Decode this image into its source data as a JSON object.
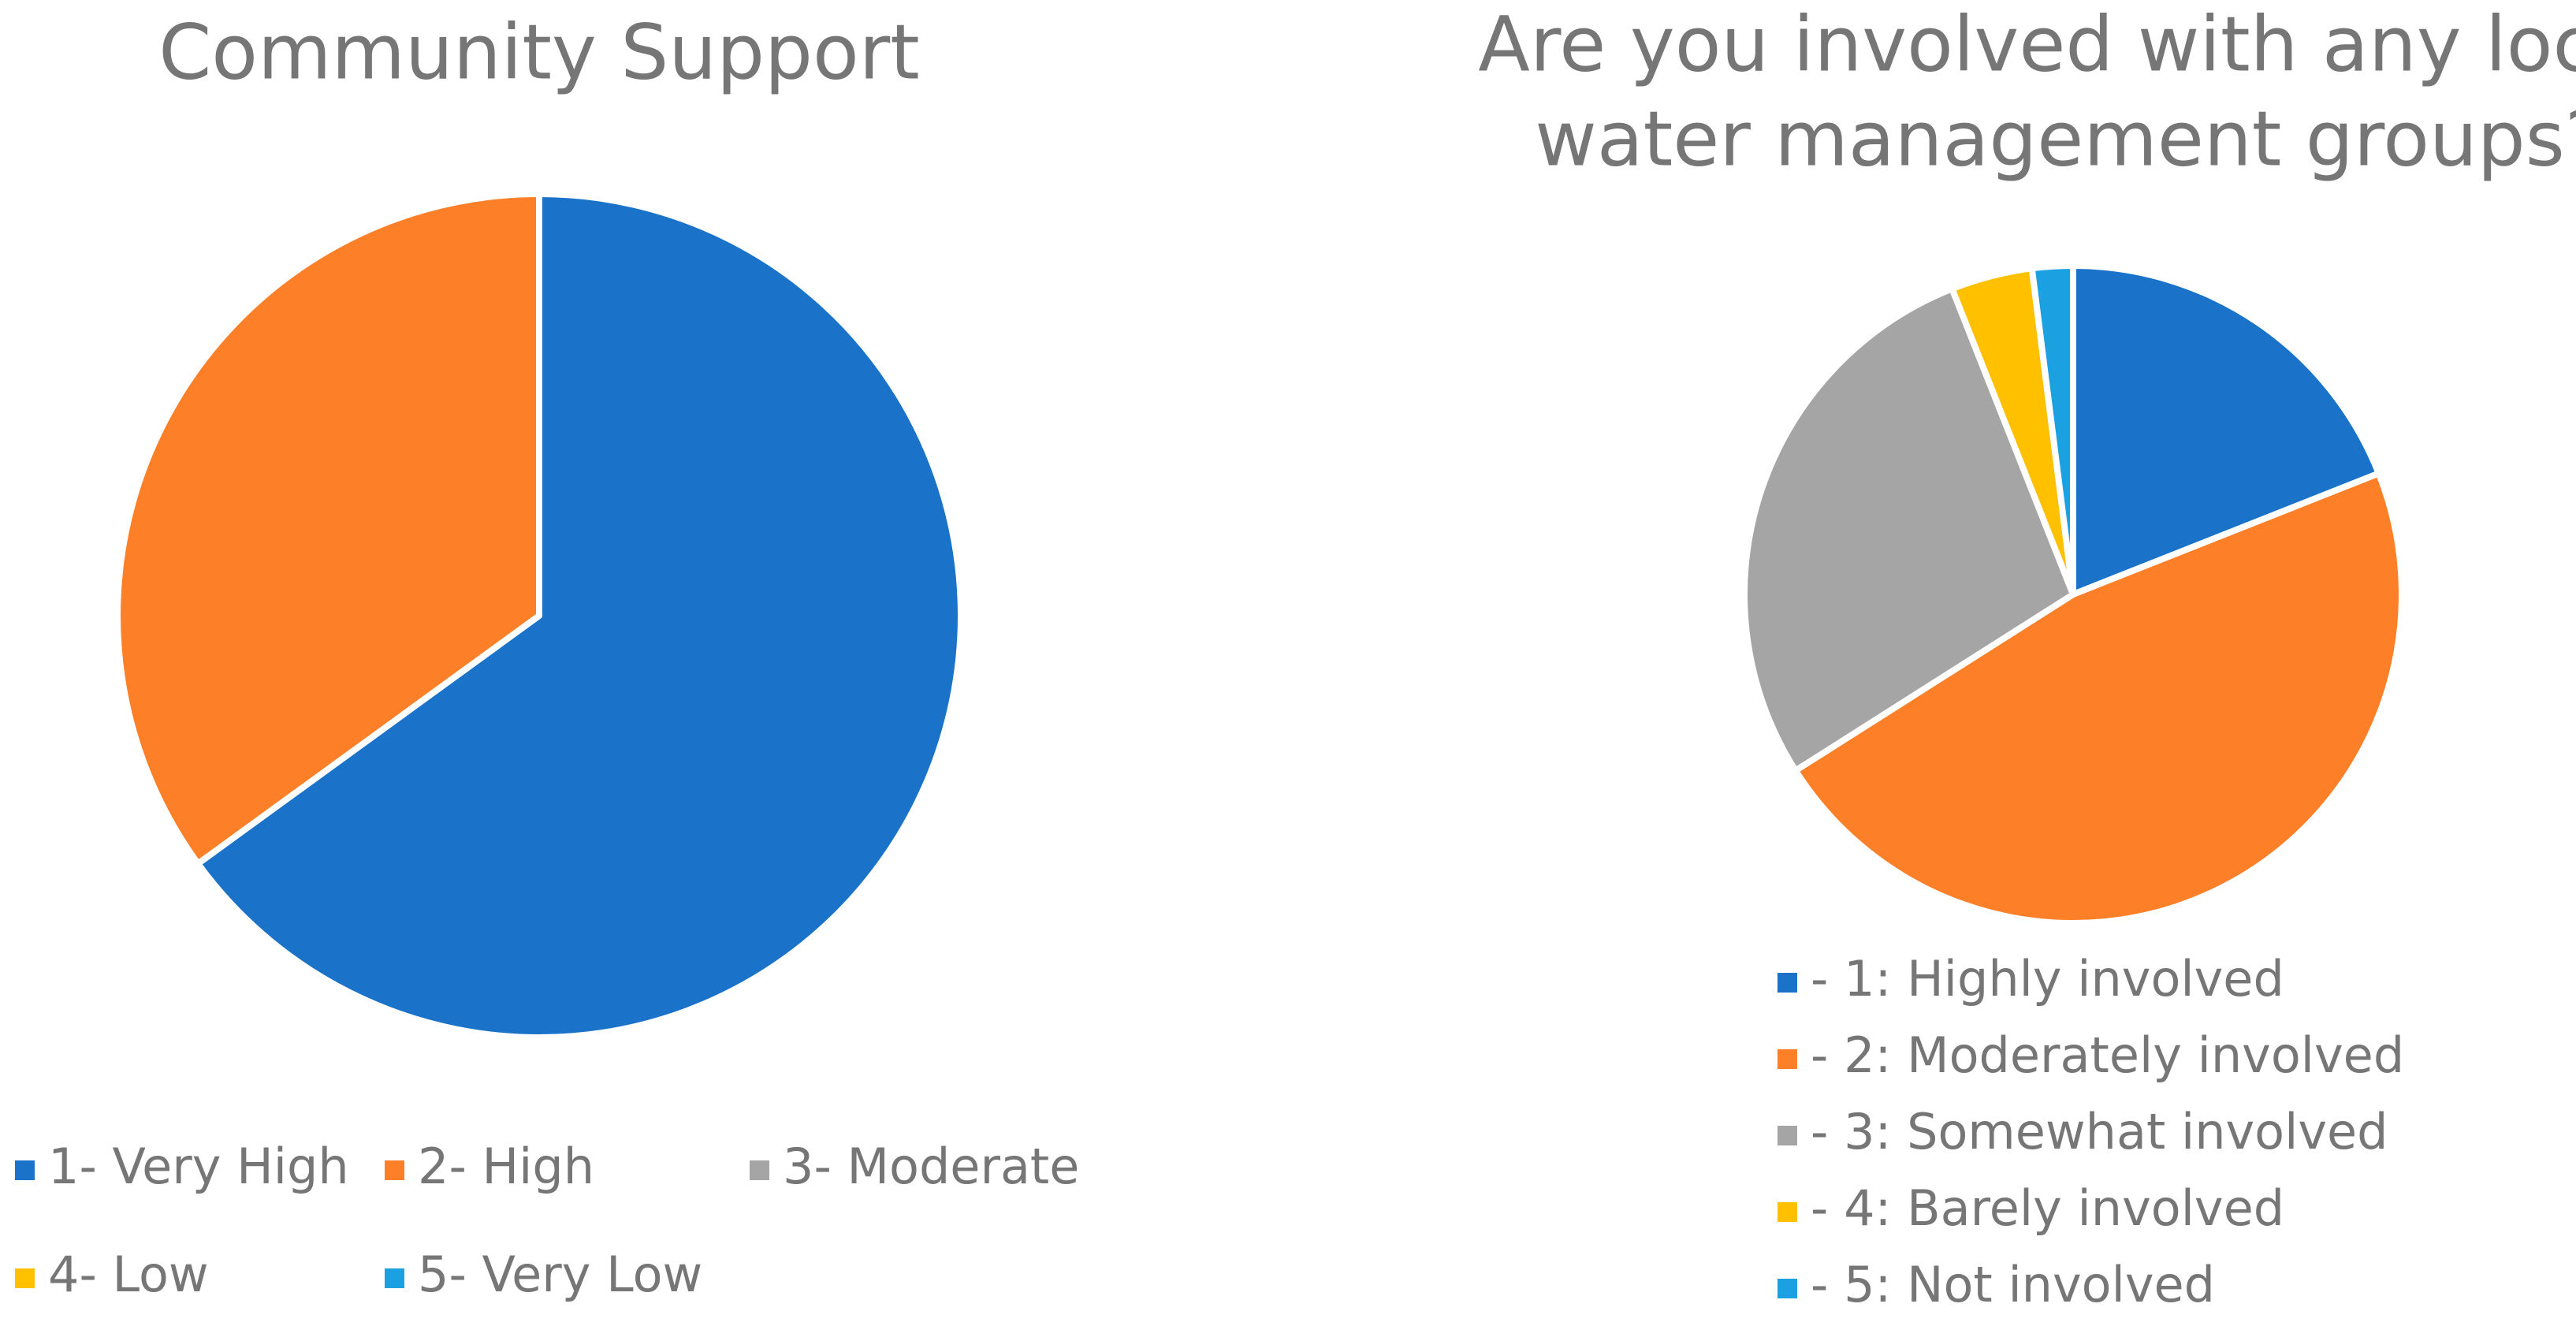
{
  "chart_data": [
    {
      "type": "pie",
      "title": "Community Support",
      "categories": [
        "1- Very High",
        "2- High",
        "3- Moderate",
        "4- Low",
        "5- Very Low"
      ],
      "values": [
        65,
        35,
        0,
        0,
        0
      ],
      "colors": [
        "#1a73c8",
        "#fd7f27",
        "#a5a5a5",
        "#ffc000",
        "#1ba1e2"
      ],
      "legend": "bottom"
    },
    {
      "type": "pie",
      "title": [
        "Are you involved with any local",
        "water management groups?"
      ],
      "categories": [
        "- 1: Highly involved",
        "- 2: Moderately involved",
        "- 3: Somewhat involved",
        "- 4: Barely involved",
        "- 5: Not involved"
      ],
      "values": [
        19,
        47,
        28,
        4,
        2
      ],
      "colors": [
        "#1a73c8",
        "#fd7f27",
        "#a5a5a5",
        "#ffc000",
        "#1ba1e2"
      ],
      "legend": "bottom"
    }
  ]
}
